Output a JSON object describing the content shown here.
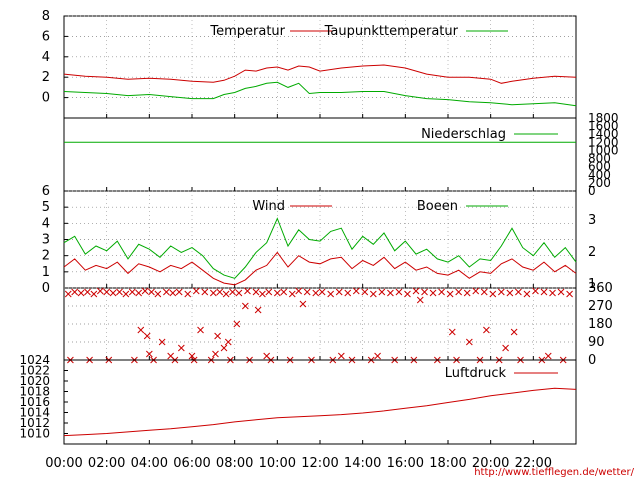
{
  "x_ticks": [
    "00:00",
    "02:00",
    "04:00",
    "06:00",
    "08:00",
    "10:00",
    "12:00",
    "14:00",
    "16:00",
    "18:00",
    "20:00",
    "22:00"
  ],
  "footer_url": "http://www.tiefflegen.de/wetter/",
  "colors": {
    "red": "#cc0000",
    "green": "#00aa00",
    "grid": "#808080",
    "axis": "#000000",
    "url": "#cc0000"
  },
  "chart_data": [
    {
      "type": "line",
      "x_unit": "hours",
      "xlim": [
        0,
        24
      ],
      "ylim": [
        -2,
        8
      ],
      "y_ticks": [
        "8",
        "6",
        "4",
        "2",
        "0"
      ],
      "series": [
        {
          "name": "Temperatur",
          "color": "#cc0000",
          "x": [
            0,
            1,
            2,
            3,
            4,
            5,
            6,
            7,
            7.5,
            8,
            8.5,
            9,
            9.5,
            10,
            10.5,
            11,
            11.5,
            12,
            13,
            14,
            15,
            16,
            17,
            18,
            19,
            20,
            20.5,
            21,
            22,
            23,
            24
          ],
          "values": [
            2.3,
            2.1,
            2.0,
            1.8,
            1.9,
            1.8,
            1.6,
            1.5,
            1.7,
            2.1,
            2.7,
            2.6,
            2.9,
            3.0,
            2.7,
            3.1,
            3.0,
            2.6,
            2.9,
            3.1,
            3.2,
            2.9,
            2.3,
            2.0,
            2.0,
            1.8,
            1.4,
            1.6,
            1.9,
            2.1,
            2.0
          ]
        },
        {
          "name": "Taupunkttemperatur",
          "color": "#00aa00",
          "x": [
            0,
            1,
            2,
            3,
            4,
            5,
            6,
            7,
            7.5,
            8,
            8.5,
            9,
            9.5,
            10,
            10.5,
            11,
            11.5,
            12,
            13,
            14,
            15,
            16,
            17,
            18,
            19,
            20,
            21,
            22,
            23,
            24
          ],
          "values": [
            0.6,
            0.5,
            0.4,
            0.2,
            0.3,
            0.1,
            -0.1,
            -0.1,
            0.3,
            0.5,
            0.9,
            1.1,
            1.4,
            1.5,
            1.0,
            1.4,
            0.4,
            0.5,
            0.5,
            0.6,
            0.6,
            0.2,
            -0.1,
            -0.2,
            -0.4,
            -0.5,
            -0.7,
            -0.6,
            -0.5,
            -0.8
          ]
        }
      ]
    },
    {
      "type": "line",
      "x_unit": "hours",
      "xlim": [
        0,
        24
      ],
      "ylim": [
        0,
        1800
      ],
      "y_ticks": [
        "1800",
        "1600",
        "1400",
        "1200",
        "1000",
        "800",
        "600",
        "400",
        "200",
        "0"
      ],
      "series": [
        {
          "name": "Niederschlag",
          "color": "#00aa00",
          "x": [
            0,
            24
          ],
          "values": [
            1200,
            1200
          ]
        }
      ]
    },
    {
      "type": "line",
      "x_unit": "hours",
      "xlim": [
        0,
        24
      ],
      "ylim": [
        0,
        6
      ],
      "y_ticks": [
        "6",
        "5",
        "4",
        "3",
        "2",
        "1",
        "0"
      ],
      "y2_ticks": [
        "3",
        "2",
        "1"
      ],
      "series": [
        {
          "name": "Wind",
          "color": "#cc0000",
          "x": [
            0,
            0.5,
            1,
            1.5,
            2,
            2.5,
            3,
            3.5,
            4,
            4.5,
            5,
            5.5,
            6,
            6.5,
            7,
            7.5,
            8,
            8.5,
            9,
            9.5,
            10,
            10.5,
            11,
            11.5,
            12,
            12.5,
            13,
            13.5,
            14,
            14.5,
            15,
            15.5,
            16,
            16.5,
            17,
            17.5,
            18,
            18.5,
            19,
            19.5,
            20,
            20.5,
            21,
            21.5,
            22,
            22.5,
            23,
            23.5,
            24
          ],
          "values": [
            1.3,
            1.8,
            1.1,
            1.4,
            1.2,
            1.6,
            0.9,
            1.5,
            1.3,
            1.0,
            1.4,
            1.2,
            1.6,
            1.1,
            0.6,
            0.3,
            0.2,
            0.5,
            1.1,
            1.4,
            2.2,
            1.3,
            2.0,
            1.6,
            1.5,
            1.8,
            1.9,
            1.2,
            1.7,
            1.4,
            1.9,
            1.2,
            1.6,
            1.1,
            1.3,
            0.9,
            0.8,
            1.1,
            0.6,
            1.0,
            0.9,
            1.5,
            1.8,
            1.3,
            1.1,
            1.6,
            1.0,
            1.4,
            0.9
          ]
        },
        {
          "name": "Boeen",
          "color": "#00aa00",
          "x": [
            0,
            0.5,
            1,
            1.5,
            2,
            2.5,
            3,
            3.5,
            4,
            4.5,
            5,
            5.5,
            6,
            6.5,
            7,
            7.5,
            8,
            8.5,
            9,
            9.5,
            10,
            10.5,
            11,
            11.5,
            12,
            12.5,
            13,
            13.5,
            14,
            14.5,
            15,
            15.5,
            16,
            16.5,
            17,
            17.5,
            18,
            18.5,
            19,
            19.5,
            20,
            20.5,
            21,
            21.5,
            22,
            22.5,
            23,
            23.5,
            24
          ],
          "values": [
            2.8,
            3.2,
            2.1,
            2.6,
            2.3,
            2.9,
            1.8,
            2.7,
            2.4,
            1.9,
            2.6,
            2.2,
            2.5,
            2.0,
            1.2,
            0.8,
            0.6,
            1.3,
            2.2,
            2.8,
            4.3,
            2.6,
            3.6,
            3.0,
            2.9,
            3.5,
            3.7,
            2.4,
            3.2,
            2.7,
            3.4,
            2.3,
            2.9,
            2.1,
            2.4,
            1.8,
            1.6,
            2.0,
            1.3,
            1.8,
            1.7,
            2.6,
            3.7,
            2.5,
            2.0,
            2.8,
            1.9,
            2.5,
            1.6
          ]
        }
      ]
    },
    {
      "type": "scatter",
      "x_unit": "hours",
      "xlim": [
        0,
        24
      ],
      "ylim": [
        0,
        360
      ],
      "y2_ticks": [
        "360",
        "270",
        "180",
        "90",
        "0"
      ],
      "series": [
        {
          "name": "",
          "color": "#cc0000",
          "marker": "x",
          "x": [
            0.2,
            0.5,
            0.8,
            1.1,
            1.4,
            1.7,
            2.0,
            2.3,
            2.6,
            2.9,
            3.2,
            3.5,
            3.8,
            4.1,
            4.4,
            4.8,
            5.1,
            5.4,
            5.8,
            6.2,
            6.6,
            7.0,
            7.3,
            7.6,
            7.9,
            8.2,
            8.6,
            9.0,
            9.3,
            9.6,
            10.0,
            10.3,
            10.7,
            11.0,
            11.4,
            11.8,
            12.1,
            12.5,
            12.9,
            13.3,
            13.7,
            14.1,
            14.5,
            14.9,
            15.3,
            15.7,
            16.1,
            16.5,
            16.9,
            17.3,
            17.7,
            18.1,
            18.5,
            18.9,
            19.3,
            19.7,
            20.1,
            20.5,
            20.9,
            21.3,
            21.7,
            22.1,
            22.5,
            22.9,
            23.3,
            23.7,
            0.3,
            1.2,
            2.1,
            3.3,
            4.2,
            5.2,
            6.1,
            6.9,
            7.8,
            8.7,
            9.7,
            10.6,
            11.6,
            12.6,
            13.5,
            14.4,
            15.5,
            16.4,
            17.5,
            18.4,
            19.5,
            20.4,
            21.4,
            22.4,
            23.4,
            3.6,
            3.9,
            4.6,
            5.5,
            6.4,
            7.2,
            7.7,
            8.1,
            8.5,
            9.1,
            18.2,
            19.0,
            20.7,
            21.1,
            4.0,
            5.0,
            6.0,
            7.1,
            7.5,
            9.5,
            11.2,
            13.0,
            14.7,
            16.7,
            19.8,
            22.7
          ],
          "values": [
            330,
            340,
            335,
            340,
            330,
            345,
            340,
            335,
            340,
            330,
            340,
            335,
            345,
            340,
            330,
            340,
            335,
            340,
            330,
            345,
            340,
            335,
            340,
            330,
            340,
            335,
            345,
            340,
            330,
            340,
            335,
            340,
            330,
            345,
            340,
            335,
            340,
            330,
            340,
            335,
            345,
            340,
            330,
            340,
            335,
            340,
            330,
            345,
            340,
            335,
            340,
            330,
            340,
            335,
            345,
            340,
            330,
            340,
            335,
            340,
            330,
            345,
            340,
            335,
            340,
            330,
            0,
            0,
            0,
            0,
            0,
            0,
            0,
            0,
            0,
            0,
            0,
            0,
            0,
            0,
            0,
            0,
            0,
            0,
            0,
            0,
            0,
            0,
            0,
            0,
            0,
            150,
            120,
            90,
            60,
            150,
            120,
            90,
            180,
            270,
            250,
            140,
            90,
            60,
            140,
            30,
            20,
            20,
            30,
            60,
            20,
            280,
            20,
            20,
            300,
            150,
            20
          ]
        }
      ]
    },
    {
      "type": "line",
      "x_unit": "hours",
      "xlim": [
        0,
        24
      ],
      "ylim": [
        1008,
        1024
      ],
      "y_ticks": [
        "1024",
        "1022",
        "1020",
        "1018",
        "1016",
        "1014",
        "1012",
        "1010"
      ],
      "series": [
        {
          "name": "Luftdruck",
          "color": "#cc0000",
          "x": [
            0,
            1,
            2,
            3,
            4,
            5,
            6,
            7,
            8,
            9,
            10,
            11,
            12,
            13,
            14,
            15,
            16,
            17,
            18,
            19,
            20,
            21,
            22,
            23,
            24
          ],
          "values": [
            1009.6,
            1009.8,
            1010.0,
            1010.3,
            1010.6,
            1010.9,
            1011.3,
            1011.7,
            1012.2,
            1012.6,
            1013.0,
            1013.2,
            1013.4,
            1013.6,
            1013.9,
            1014.3,
            1014.8,
            1015.3,
            1015.9,
            1016.5,
            1017.2,
            1017.7,
            1018.2,
            1018.6,
            1018.4
          ]
        }
      ]
    }
  ]
}
